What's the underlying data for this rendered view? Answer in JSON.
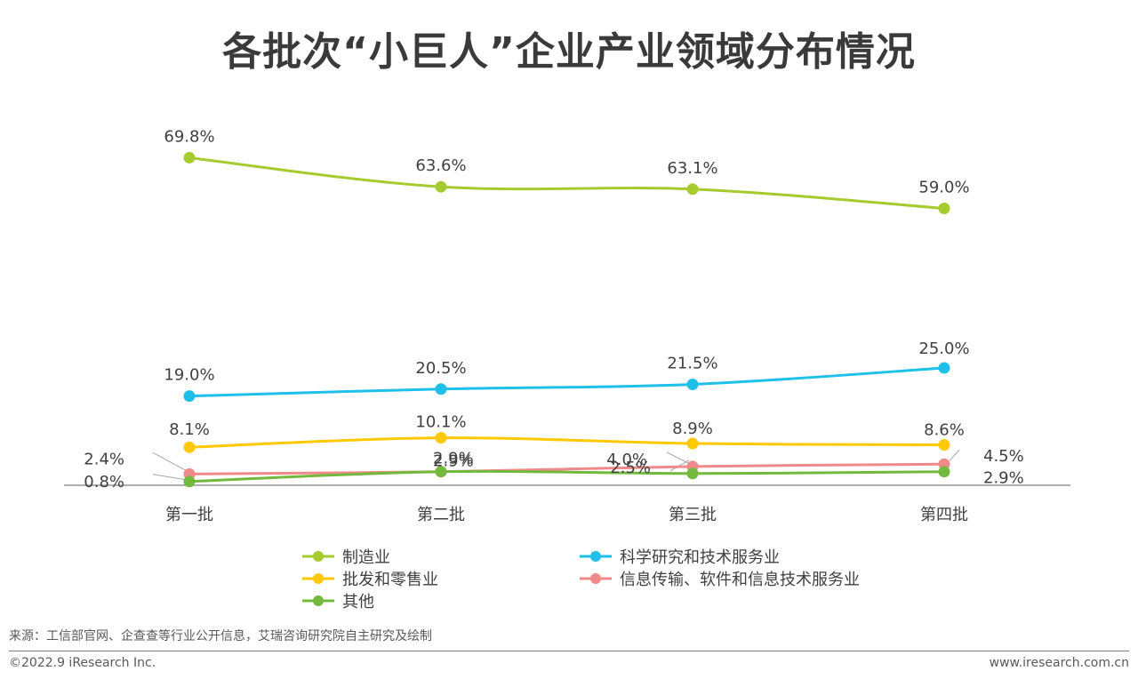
{
  "page": {
    "title": "各批次“小巨人”企业产业领域分布情况",
    "source": "来源：工信部官网、企查查等行业公开信息，艾瑞咨询研究院自主研究及绘制",
    "copyright": "©2022.9 iResearch Inc.",
    "website": "www.iresearch.com.cn"
  },
  "chart_data": {
    "type": "line",
    "title": "各批次“小巨人”企业产业领域分布情况",
    "xlabel": "",
    "ylabel": "",
    "ylim": [
      0,
      75
    ],
    "grid": false,
    "legend_position": "bottom",
    "categories": [
      "第一批",
      "第二批",
      "第三批",
      "第四批"
    ],
    "series": [
      {
        "name": "制造业",
        "color": "#a6cb2f",
        "values": [
          69.8,
          63.6,
          63.1,
          59.0
        ],
        "labels": [
          "69.8%",
          "63.6%",
          "63.1%",
          "59.0%"
        ]
      },
      {
        "name": "科学研究和技术服务业",
        "color": "#1ec0ea",
        "values": [
          19.0,
          20.5,
          21.5,
          25.0
        ],
        "labels": [
          "19.0%",
          "20.5%",
          "21.5%",
          "25.0%"
        ]
      },
      {
        "name": "批发和零售业",
        "color": "#ffc800",
        "values": [
          8.1,
          10.1,
          8.9,
          8.6
        ],
        "labels": [
          "8.1%",
          "10.1%",
          "8.9%",
          "8.6%"
        ]
      },
      {
        "name": "信息传输、软件和信息技术服务业",
        "color": "#f08a8a",
        "values": [
          2.4,
          2.9,
          4.0,
          4.5
        ],
        "labels": [
          "2.4%",
          "2.9%",
          "4.0%",
          "4.5%"
        ]
      },
      {
        "name": "其他",
        "color": "#72b93d",
        "values": [
          0.8,
          2.9,
          2.5,
          2.9
        ],
        "labels": [
          "0.8%",
          "2.9%",
          "2.5%",
          "2.9%"
        ]
      }
    ]
  }
}
